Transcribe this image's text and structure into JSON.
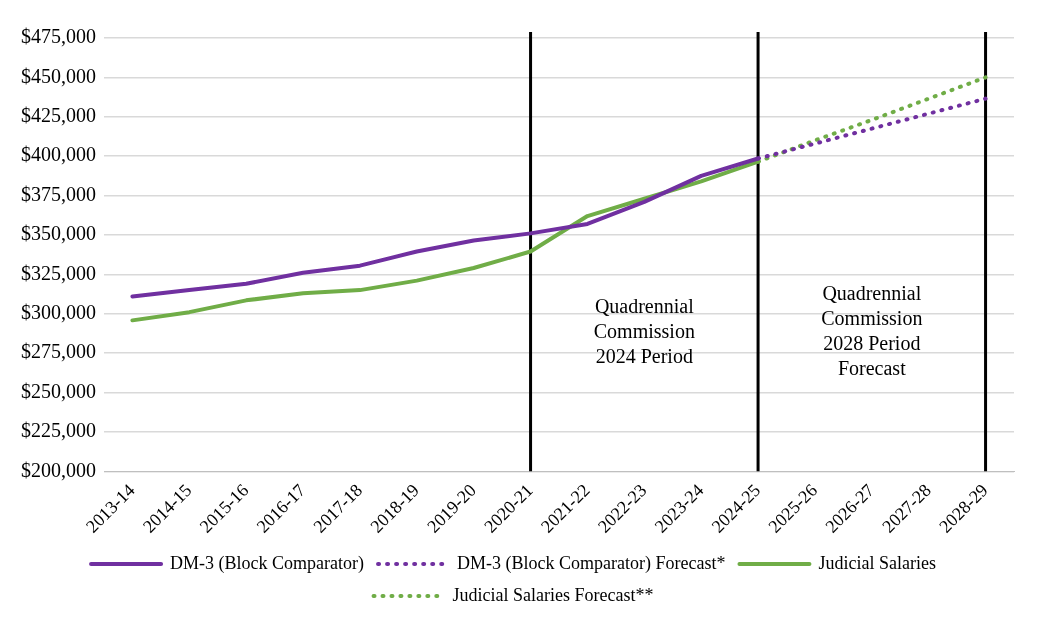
{
  "chart_data": {
    "type": "line",
    "categories": [
      "2013-14",
      "2014-15",
      "2015-16",
      "2016-17",
      "2017-18",
      "2018-19",
      "2019-20",
      "2020-21",
      "2021-22",
      "2022-23",
      "2023-24",
      "2024-25",
      "2025-26",
      "2026-27",
      "2027-28",
      "2028-29"
    ],
    "series": [
      {
        "name": "DM-3 (Block Comparator)",
        "color": "#7030a0",
        "line_style": "solid",
        "values": [
          311000,
          315000,
          319000,
          326000,
          330500,
          339500,
          346500,
          351000,
          357000,
          371000,
          387500,
          398500,
          null,
          null,
          null,
          null
        ]
      },
      {
        "name": "DM-3 (Block Comparator) Forecast*",
        "color": "#7030a0",
        "line_style": "dotted",
        "values": [
          null,
          null,
          null,
          null,
          null,
          null,
          null,
          null,
          null,
          null,
          null,
          398500,
          408000,
          417500,
          427000,
          436500
        ]
      },
      {
        "name": "Judicial Salaries",
        "color": "#70ad47",
        "line_style": "solid",
        "values": [
          295800,
          301000,
          308500,
          313000,
          315000,
          321000,
          329000,
          339500,
          362000,
          373000,
          384000,
          396500,
          null,
          null,
          null,
          null
        ]
      },
      {
        "name": "Judicial Salaries Forecast**",
        "color": "#70ad47",
        "line_style": "dotted",
        "values": [
          null,
          null,
          null,
          null,
          null,
          null,
          null,
          null,
          null,
          null,
          null,
          396500,
          410000,
          423000,
          436500,
          450000
        ]
      }
    ],
    "ylim": [
      200000,
      475000
    ],
    "yticks": [
      {
        "value": 200000,
        "label": "$200,000"
      },
      {
        "value": 225000,
        "label": "$225,000"
      },
      {
        "value": 250000,
        "label": "$250,000"
      },
      {
        "value": 275000,
        "label": "$275,000"
      },
      {
        "value": 300000,
        "label": "$300,000"
      },
      {
        "value": 325000,
        "label": "$325,000"
      },
      {
        "value": 350000,
        "label": "$350,000"
      },
      {
        "value": 375000,
        "label": "$375,000"
      },
      {
        "value": 400000,
        "label": "$400,000"
      },
      {
        "value": 425000,
        "label": "$425,000"
      },
      {
        "value": 450000,
        "label": "$450,000"
      },
      {
        "value": 475000,
        "label": "$475,000"
      }
    ],
    "grid": "y",
    "legend": "bottom",
    "marker": "none",
    "ref_lines": [
      {
        "axis": "x",
        "value": "2020-21",
        "color": "#000000"
      },
      {
        "axis": "x",
        "value": "2024-25",
        "color": "#000000"
      },
      {
        "axis": "x",
        "value": "2028-29",
        "color": "#000000"
      }
    ],
    "annotations": [
      "Quadrennial\nCommission\n2024 Period",
      "Quadrennial\nCommission\n2028 Period\nForecast"
    ]
  }
}
